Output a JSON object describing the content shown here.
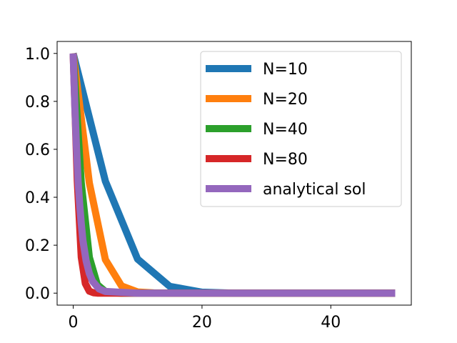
{
  "chart_data": {
    "type": "line",
    "title": "",
    "xlabel": "",
    "ylabel": "",
    "xlim": [
      -2.5,
      52.5
    ],
    "ylim": [
      -0.05,
      1.05
    ],
    "grid": false,
    "legend_position": "top-right",
    "xticks": [
      0,
      20,
      40
    ],
    "xtick_labels": [
      "0",
      "20",
      "40"
    ],
    "yticks": [
      0.0,
      0.2,
      0.4,
      0.6,
      0.8,
      1.0
    ],
    "ytick_labels": [
      "0.0",
      "0.2",
      "0.4",
      "0.6",
      "0.8",
      "1.0"
    ],
    "series": [
      {
        "name": "N=10",
        "color": "#1f77b4",
        "x": [
          0,
          5,
          10,
          15,
          20,
          25,
          30,
          35,
          40,
          45,
          50
        ],
        "y": [
          1.0,
          0.467,
          0.142,
          0.028,
          0.004,
          0.0,
          0.0,
          0.0,
          0.0,
          0.0,
          0.0
        ]
      },
      {
        "name": "N=20",
        "color": "#ff7f0e",
        "x": [
          0,
          2.5,
          5,
          7.5,
          10,
          12.5,
          15,
          17.5,
          20,
          22.5,
          25,
          30,
          35,
          40,
          45,
          50
        ],
        "y": [
          1.0,
          0.46,
          0.14,
          0.03,
          0.005,
          0.001,
          0.0,
          0.0,
          0.0,
          0.0,
          0.0,
          0.0,
          0.0,
          0.0,
          0.0,
          0.0
        ]
      },
      {
        "name": "N=40",
        "color": "#2ca02c",
        "x": [
          0,
          1.25,
          2.5,
          3.75,
          5,
          6.25,
          7.5,
          8.75,
          10,
          15,
          20,
          30,
          40,
          50
        ],
        "y": [
          1.0,
          0.46,
          0.15,
          0.035,
          0.007,
          0.001,
          0.0,
          0.0,
          0.0,
          0.0,
          0.0,
          0.0,
          0.0,
          0.0
        ]
      },
      {
        "name": "N=80",
        "color": "#d62728",
        "x": [
          0,
          0.625,
          1.25,
          1.875,
          2.5,
          3.125,
          3.75,
          5,
          10,
          20,
          30,
          40,
          50
        ],
        "y": [
          1.0,
          0.47,
          0.15,
          0.04,
          0.008,
          0.002,
          0.0,
          0.0,
          0.0,
          0.0,
          0.0,
          0.0,
          0.0
        ]
      },
      {
        "name": "analytical sol",
        "color": "#9467bd",
        "x": [
          0,
          0.25,
          0.5,
          0.75,
          1.0,
          1.25,
          1.5,
          2.0,
          2.5,
          3.0,
          4.0,
          5.0,
          10,
          20,
          30,
          40,
          50
        ],
        "y": [
          1.0,
          0.78,
          0.61,
          0.47,
          0.37,
          0.29,
          0.22,
          0.135,
          0.082,
          0.05,
          0.018,
          0.007,
          0.0,
          0.0,
          0.0,
          0.0,
          0.0
        ]
      }
    ]
  }
}
